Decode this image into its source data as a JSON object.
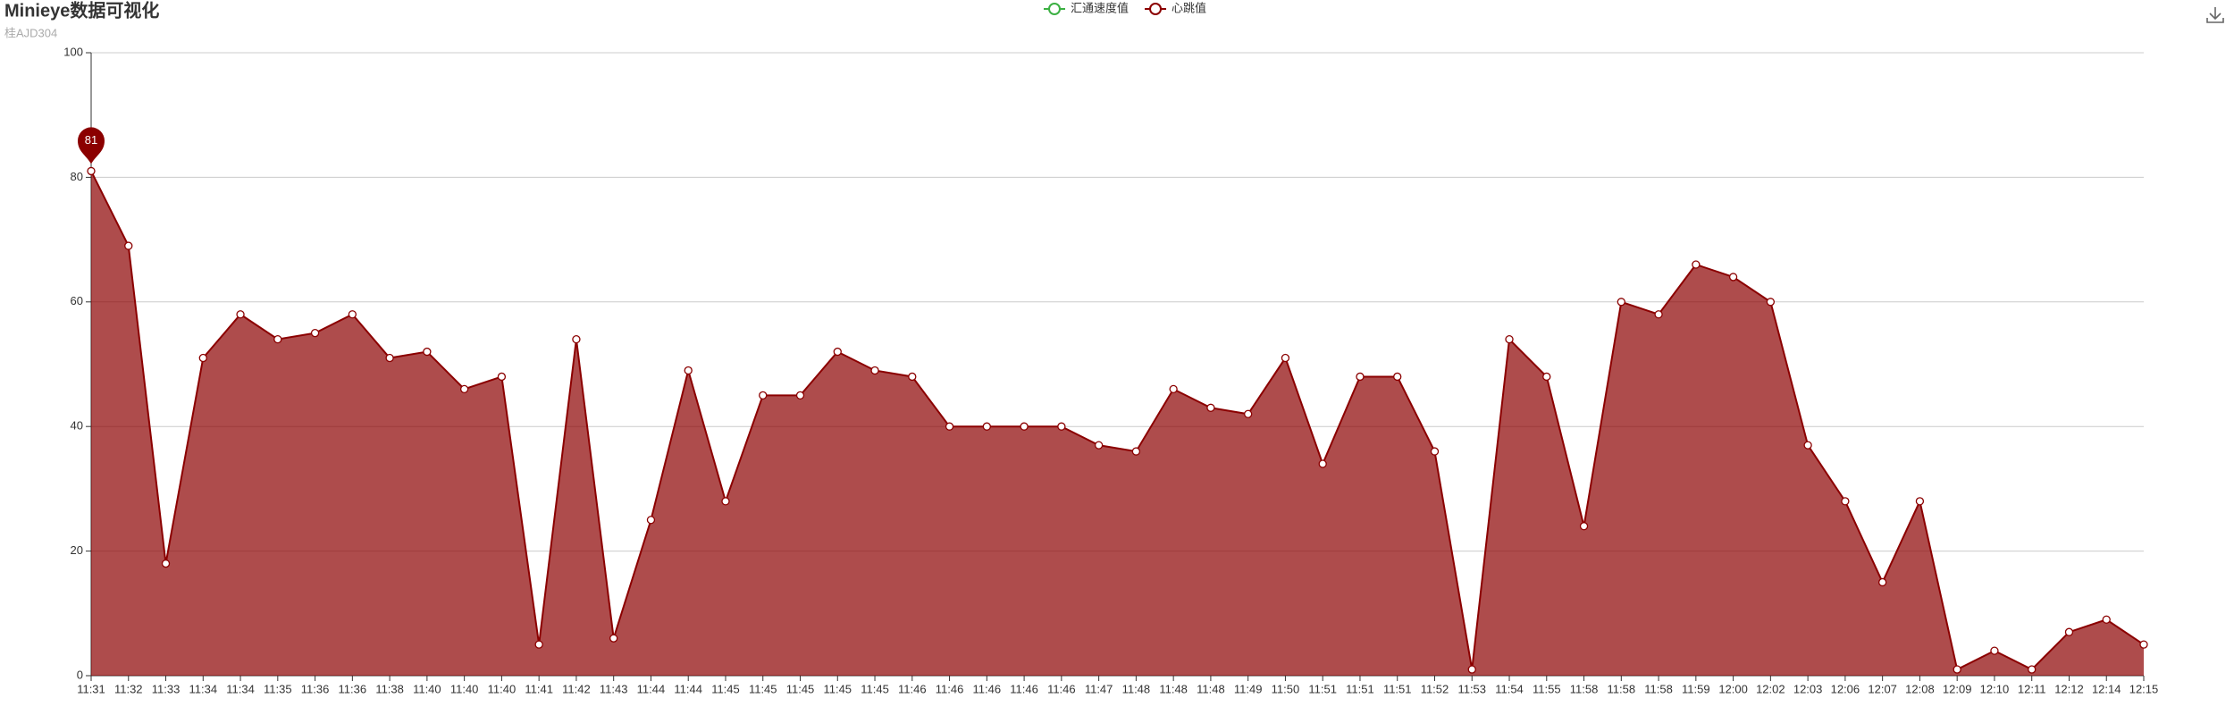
{
  "chart_data": {
    "type": "area",
    "title": "Minieye数据可视化",
    "subtitle": "桂AJD304",
    "legend": [
      {
        "name": "汇通速度值",
        "color": "#3cb043"
      },
      {
        "name": "心跳值",
        "color": "#8b0000"
      }
    ],
    "categories": [
      "11:31",
      "11:32",
      "11:33",
      "11:34",
      "11:34",
      "11:35",
      "11:36",
      "11:36",
      "11:38",
      "11:40",
      "11:40",
      "11:40",
      "11:41",
      "11:42",
      "11:43",
      "11:44",
      "11:44",
      "11:45",
      "11:45",
      "11:45",
      "11:45",
      "11:45",
      "11:46",
      "11:46",
      "11:46",
      "11:46",
      "11:46",
      "11:47",
      "11:48",
      "11:48",
      "11:48",
      "11:49",
      "11:50",
      "11:51",
      "11:51",
      "11:51",
      "11:52",
      "11:53",
      "11:54",
      "11:55",
      "11:58",
      "11:58",
      "11:58",
      "11:59",
      "12:00",
      "12:02",
      "12:03",
      "12:06",
      "12:07",
      "12:08",
      "12:09",
      "12:10",
      "12:11",
      "12:12",
      "12:14",
      "12:15"
    ],
    "series": [
      {
        "name": "心跳值",
        "color": "#8b0000",
        "values": [
          81,
          69,
          18,
          51,
          58,
          54,
          55,
          58,
          51,
          52,
          46,
          48,
          5,
          54,
          6,
          25,
          49,
          28,
          45,
          45,
          52,
          49,
          48,
          40,
          40,
          40,
          40,
          37,
          36,
          46,
          43,
          42,
          51,
          34,
          48,
          48,
          36,
          1,
          54,
          48,
          24,
          60,
          58,
          66,
          64,
          60,
          37,
          28,
          15,
          28,
          1,
          4,
          1,
          7,
          9,
          5
        ]
      }
    ],
    "ylim": [
      0,
      100
    ],
    "yticks": [
      0,
      20,
      40,
      60,
      80,
      100
    ],
    "grid": true
  }
}
